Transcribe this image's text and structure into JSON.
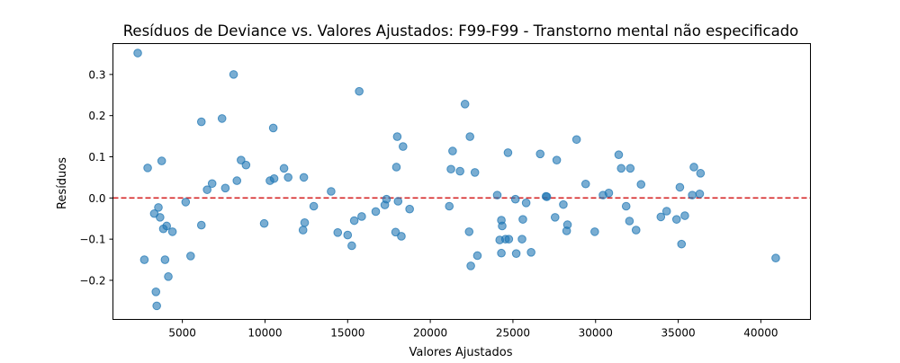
{
  "chart_data": {
    "type": "scatter",
    "title": "Resíduos de Deviance vs. Valores Ajustados: F99-F99 - Transtorno mental não especificado",
    "xlabel": "Valores Ajustados",
    "ylabel": "Resíduos",
    "xlim": [
      800,
      43000
    ],
    "ylim": [
      -0.295,
      0.375
    ],
    "xticks": [
      5000,
      10000,
      15000,
      20000,
      25000,
      30000,
      35000,
      40000
    ],
    "xtick_labels": [
      "5000",
      "10000",
      "15000",
      "20000",
      "25000",
      "30000",
      "35000",
      "40000"
    ],
    "yticks": [
      -0.2,
      -0.1,
      0.0,
      0.1,
      0.2,
      0.3
    ],
    "ytick_labels": [
      "−0.2",
      "−0.1",
      "0.0",
      "0.1",
      "0.2",
      "0.3"
    ],
    "reference_line": {
      "y": 0.0,
      "color": "#d62728",
      "style": "dashed"
    },
    "point_color": "#1f77b4",
    "grid": false,
    "legend": "none",
    "points": [
      [
        2300,
        0.352
      ],
      [
        2700,
        -0.15
      ],
      [
        2900,
        0.073
      ],
      [
        3300,
        -0.038
      ],
      [
        3400,
        -0.228
      ],
      [
        3450,
        -0.262
      ],
      [
        3550,
        -0.023
      ],
      [
        3650,
        -0.047
      ],
      [
        3750,
        0.09
      ],
      [
        3850,
        -0.075
      ],
      [
        3950,
        -0.15
      ],
      [
        4050,
        -0.068
      ],
      [
        4150,
        -0.191
      ],
      [
        4400,
        -0.082
      ],
      [
        5200,
        -0.01
      ],
      [
        5500,
        -0.141
      ],
      [
        6150,
        0.185
      ],
      [
        6150,
        -0.066
      ],
      [
        6500,
        0.02
      ],
      [
        6800,
        0.035
      ],
      [
        7400,
        0.193
      ],
      [
        7600,
        0.024
      ],
      [
        8100,
        0.3
      ],
      [
        8300,
        0.042
      ],
      [
        8550,
        0.092
      ],
      [
        8850,
        0.08
      ],
      [
        9950,
        -0.062
      ],
      [
        10300,
        0.042
      ],
      [
        10500,
        0.17
      ],
      [
        10550,
        0.047
      ],
      [
        11150,
        0.072
      ],
      [
        11400,
        0.05
      ],
      [
        12300,
        -0.078
      ],
      [
        12350,
        0.05
      ],
      [
        12400,
        -0.06
      ],
      [
        12950,
        -0.02
      ],
      [
        14000,
        0.016
      ],
      [
        14400,
        -0.084
      ],
      [
        15000,
        -0.09
      ],
      [
        15250,
        -0.116
      ],
      [
        15400,
        -0.055
      ],
      [
        15700,
        0.259
      ],
      [
        15850,
        -0.045
      ],
      [
        16700,
        -0.033
      ],
      [
        17250,
        -0.017
      ],
      [
        17350,
        -0.003
      ],
      [
        17900,
        -0.083
      ],
      [
        17950,
        0.075
      ],
      [
        18000,
        0.149
      ],
      [
        18050,
        -0.008
      ],
      [
        18250,
        -0.093
      ],
      [
        18350,
        0.125
      ],
      [
        18750,
        -0.027
      ],
      [
        21150,
        -0.02
      ],
      [
        21250,
        0.07
      ],
      [
        21350,
        0.114
      ],
      [
        21800,
        0.065
      ],
      [
        22100,
        0.228
      ],
      [
        22350,
        -0.082
      ],
      [
        22400,
        0.149
      ],
      [
        22450,
        -0.165
      ],
      [
        22700,
        0.062
      ],
      [
        22850,
        -0.14
      ],
      [
        24050,
        0.007
      ],
      [
        24200,
        -0.102
      ],
      [
        24300,
        -0.054
      ],
      [
        24300,
        -0.134
      ],
      [
        24350,
        -0.068
      ],
      [
        24550,
        -0.1
      ],
      [
        24700,
        0.11
      ],
      [
        24750,
        -0.1
      ],
      [
        25150,
        -0.003
      ],
      [
        25200,
        -0.135
      ],
      [
        25550,
        -0.1
      ],
      [
        25600,
        -0.052
      ],
      [
        25800,
        -0.012
      ],
      [
        26100,
        -0.132
      ],
      [
        26650,
        0.107
      ],
      [
        27000,
        0.004
      ],
      [
        27050,
        0.003
      ],
      [
        27550,
        -0.047
      ],
      [
        27650,
        0.092
      ],
      [
        28050,
        -0.016
      ],
      [
        28250,
        -0.08
      ],
      [
        28300,
        -0.065
      ],
      [
        28850,
        0.142
      ],
      [
        29400,
        0.034
      ],
      [
        29950,
        -0.082
      ],
      [
        30450,
        0.007
      ],
      [
        30800,
        0.012
      ],
      [
        31400,
        0.105
      ],
      [
        31550,
        0.072
      ],
      [
        31850,
        -0.02
      ],
      [
        32050,
        -0.056
      ],
      [
        32100,
        0.072
      ],
      [
        32450,
        -0.078
      ],
      [
        32750,
        0.033
      ],
      [
        33950,
        -0.046
      ],
      [
        34300,
        -0.032
      ],
      [
        34900,
        -0.052
      ],
      [
        35100,
        0.026
      ],
      [
        35200,
        -0.112
      ],
      [
        35400,
        -0.043
      ],
      [
        35850,
        0.007
      ],
      [
        35950,
        0.075
      ],
      [
        36300,
        0.01
      ],
      [
        36350,
        0.06
      ],
      [
        40900,
        -0.146
      ]
    ]
  }
}
